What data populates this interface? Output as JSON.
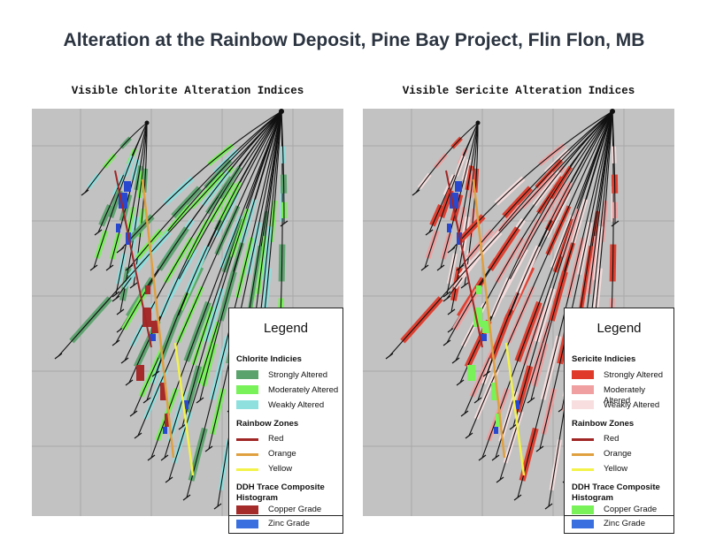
{
  "title": "Alteration at the Rainbow Deposit, Pine Bay Project, Flin Flon, MB",
  "panels": [
    {
      "subtitle": "Visible Chlorite Alteration Indices",
      "legend": {
        "title": "Legend",
        "section1_title": "Chlorite Indicies",
        "alteration": [
          {
            "label": "Strongly Altered",
            "color": "#5aa36c"
          },
          {
            "label": "Moderately Altered",
            "color": "#79f25a"
          },
          {
            "label": "Weakly Altered",
            "color": "#8ee0df"
          }
        ],
        "zones_title": "Rainbow Zones",
        "zones": [
          {
            "label": "Red",
            "color": "#a02626"
          },
          {
            "label": "Orange",
            "color": "#e0a040"
          },
          {
            "label": "Yellow",
            "color": "#f2f24a"
          }
        ],
        "histogram_title": "DDH Trace Composite Histogram",
        "grades": [
          {
            "label": "Copper Grade",
            "color": "#a52a2a"
          },
          {
            "label": "Zinc Grade",
            "color": "#3a6fe0"
          }
        ]
      }
    },
    {
      "subtitle": "Visible Sericite Alteration Indices",
      "legend": {
        "title": "Legend",
        "section1_title": "Sericite Indicies",
        "alteration": [
          {
            "label": "Strongly Altered",
            "color": "#e03a2a"
          },
          {
            "label": "Moderately Altered",
            "color": "#f0a0a0"
          },
          {
            "label": "Weakly Altered",
            "color": "#f8dede"
          }
        ],
        "zones_title": "Rainbow Zones",
        "zones": [
          {
            "label": "Red",
            "color": "#a02626"
          },
          {
            "label": "Orange",
            "color": "#e0a040"
          },
          {
            "label": "Yellow",
            "color": "#f2f24a"
          }
        ],
        "histogram_title": "DDH Trace Composite Histogram",
        "grades": [
          {
            "label": "Copper Grade",
            "color": "#79f25a"
          },
          {
            "label": "Zinc Grade",
            "color": "#3a6fe0"
          }
        ]
      }
    }
  ]
}
